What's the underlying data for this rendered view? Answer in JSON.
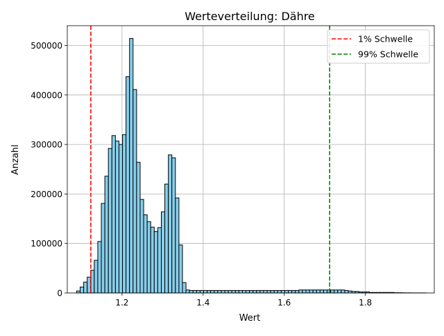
{
  "chart_data": {
    "type": "bar",
    "title": "Werteverteilung: Dähre",
    "xlabel": "Wert",
    "ylabel": "Anzahl",
    "xlim": [
      1.065,
      1.97
    ],
    "ylim": [
      0,
      540000
    ],
    "xticks": [
      1.2,
      1.4,
      1.6,
      1.8
    ],
    "xtick_labels": [
      "1.2",
      "1.4",
      "1.6",
      "1.8"
    ],
    "yticks": [
      0,
      100000,
      200000,
      300000,
      400000,
      500000
    ],
    "ytick_labels": [
      "0",
      "100000",
      "200000",
      "300000",
      "400000",
      "500000"
    ],
    "grid": true,
    "legend_position": "top-right",
    "colors": {
      "bars": "#87ceeb",
      "edge": "#000000",
      "low_line": "#ff0000",
      "high_line": "#008000"
    },
    "bin_start": 1.088,
    "bin_width": 0.0087,
    "values": [
      4000,
      12000,
      22000,
      32000,
      46000,
      66000,
      104000,
      181000,
      236000,
      292000,
      318000,
      307000,
      300000,
      320000,
      437000,
      514000,
      411000,
      264000,
      189000,
      158000,
      144000,
      133000,
      124000,
      132000,
      164000,
      220000,
      279000,
      273000,
      192000,
      97000,
      21000,
      6000,
      5000,
      5000,
      5000,
      5000,
      5000,
      5000,
      5000,
      5000,
      5000,
      5000,
      5000,
      5000,
      5000,
      5000,
      5000,
      5000,
      5000,
      5000,
      5000,
      5000,
      5000,
      5000,
      5000,
      5000,
      5000,
      5000,
      5000,
      5000,
      5000,
      5000,
      5000,
      6000,
      6000,
      6000,
      6000,
      6000,
      6000,
      6000,
      6000,
      6000,
      6000,
      6000,
      6000,
      6000,
      5000,
      4000,
      3000,
      3000,
      2000,
      2000,
      2000,
      1000,
      1000,
      1000,
      1000,
      1000,
      1000,
      1000,
      500,
      500,
      300,
      200,
      200,
      100,
      100,
      100,
      100
    ],
    "thresholds": [
      {
        "label": "1% Schwelle",
        "value": 1.123,
        "color": "#ff0000"
      },
      {
        "label": "99% Schwelle",
        "value": 1.712,
        "color": "#008000"
      }
    ]
  }
}
